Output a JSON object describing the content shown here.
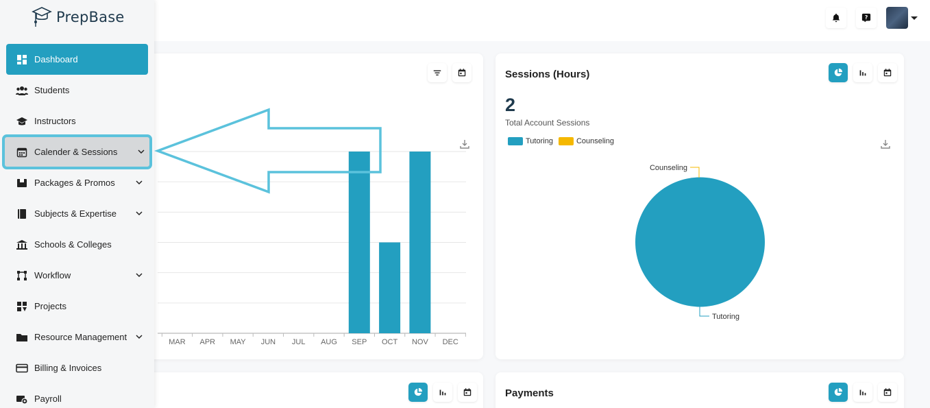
{
  "app": {
    "name": "PrepBase"
  },
  "nav": {
    "items": [
      {
        "label": "Dashboard",
        "icon": "dashboard-icon",
        "active": true,
        "has_submenu": false
      },
      {
        "label": "Students",
        "icon": "users-icon",
        "has_submenu": false
      },
      {
        "label": "Instructors",
        "icon": "graduation-cap-icon",
        "has_submenu": false
      },
      {
        "label": "Calender & Sessions",
        "icon": "calendar-icon",
        "has_submenu": true,
        "highlighted": true
      },
      {
        "label": "Packages & Promos",
        "icon": "package-icon",
        "has_submenu": true
      },
      {
        "label": "Subjects & Expertise",
        "icon": "book-icon",
        "has_submenu": true
      },
      {
        "label": "Schools & Colleges",
        "icon": "school-icon",
        "has_submenu": false
      },
      {
        "label": "Workflow",
        "icon": "workflow-icon",
        "has_submenu": true
      },
      {
        "label": "Projects",
        "icon": "projects-icon",
        "has_submenu": false
      },
      {
        "label": "Resource Management",
        "icon": "folder-icon",
        "has_submenu": true
      },
      {
        "label": "Billing & Invoices",
        "icon": "credit-card-icon",
        "has_submenu": false
      },
      {
        "label": "Payroll",
        "icon": "payroll-icon",
        "has_submenu": false
      }
    ]
  },
  "colors": {
    "accent": "#239fc0",
    "counseling": "#f5b800",
    "highlight": "#5bc2dc"
  },
  "cards": {
    "monthly": {
      "chart_data": {
        "type": "bar",
        "categories": [
          "MAR",
          "APR",
          "MAY",
          "JUN",
          "JUL",
          "AUG",
          "SEP",
          "OCT",
          "NOV",
          "DEC"
        ],
        "values": [
          0,
          0,
          0,
          0,
          0,
          0,
          6,
          3,
          6,
          0
        ],
        "ylim": [
          0,
          6
        ],
        "grid": true
      }
    },
    "sessions": {
      "title": "Sessions (Hours)",
      "total": "2",
      "total_label": "Total Account Sessions",
      "chart_data": {
        "type": "pie",
        "labels": [
          "Tutoring",
          "Counseling"
        ],
        "values": [
          2,
          0
        ],
        "legend": "top-left"
      }
    },
    "payments": {
      "title": "Payments"
    }
  }
}
